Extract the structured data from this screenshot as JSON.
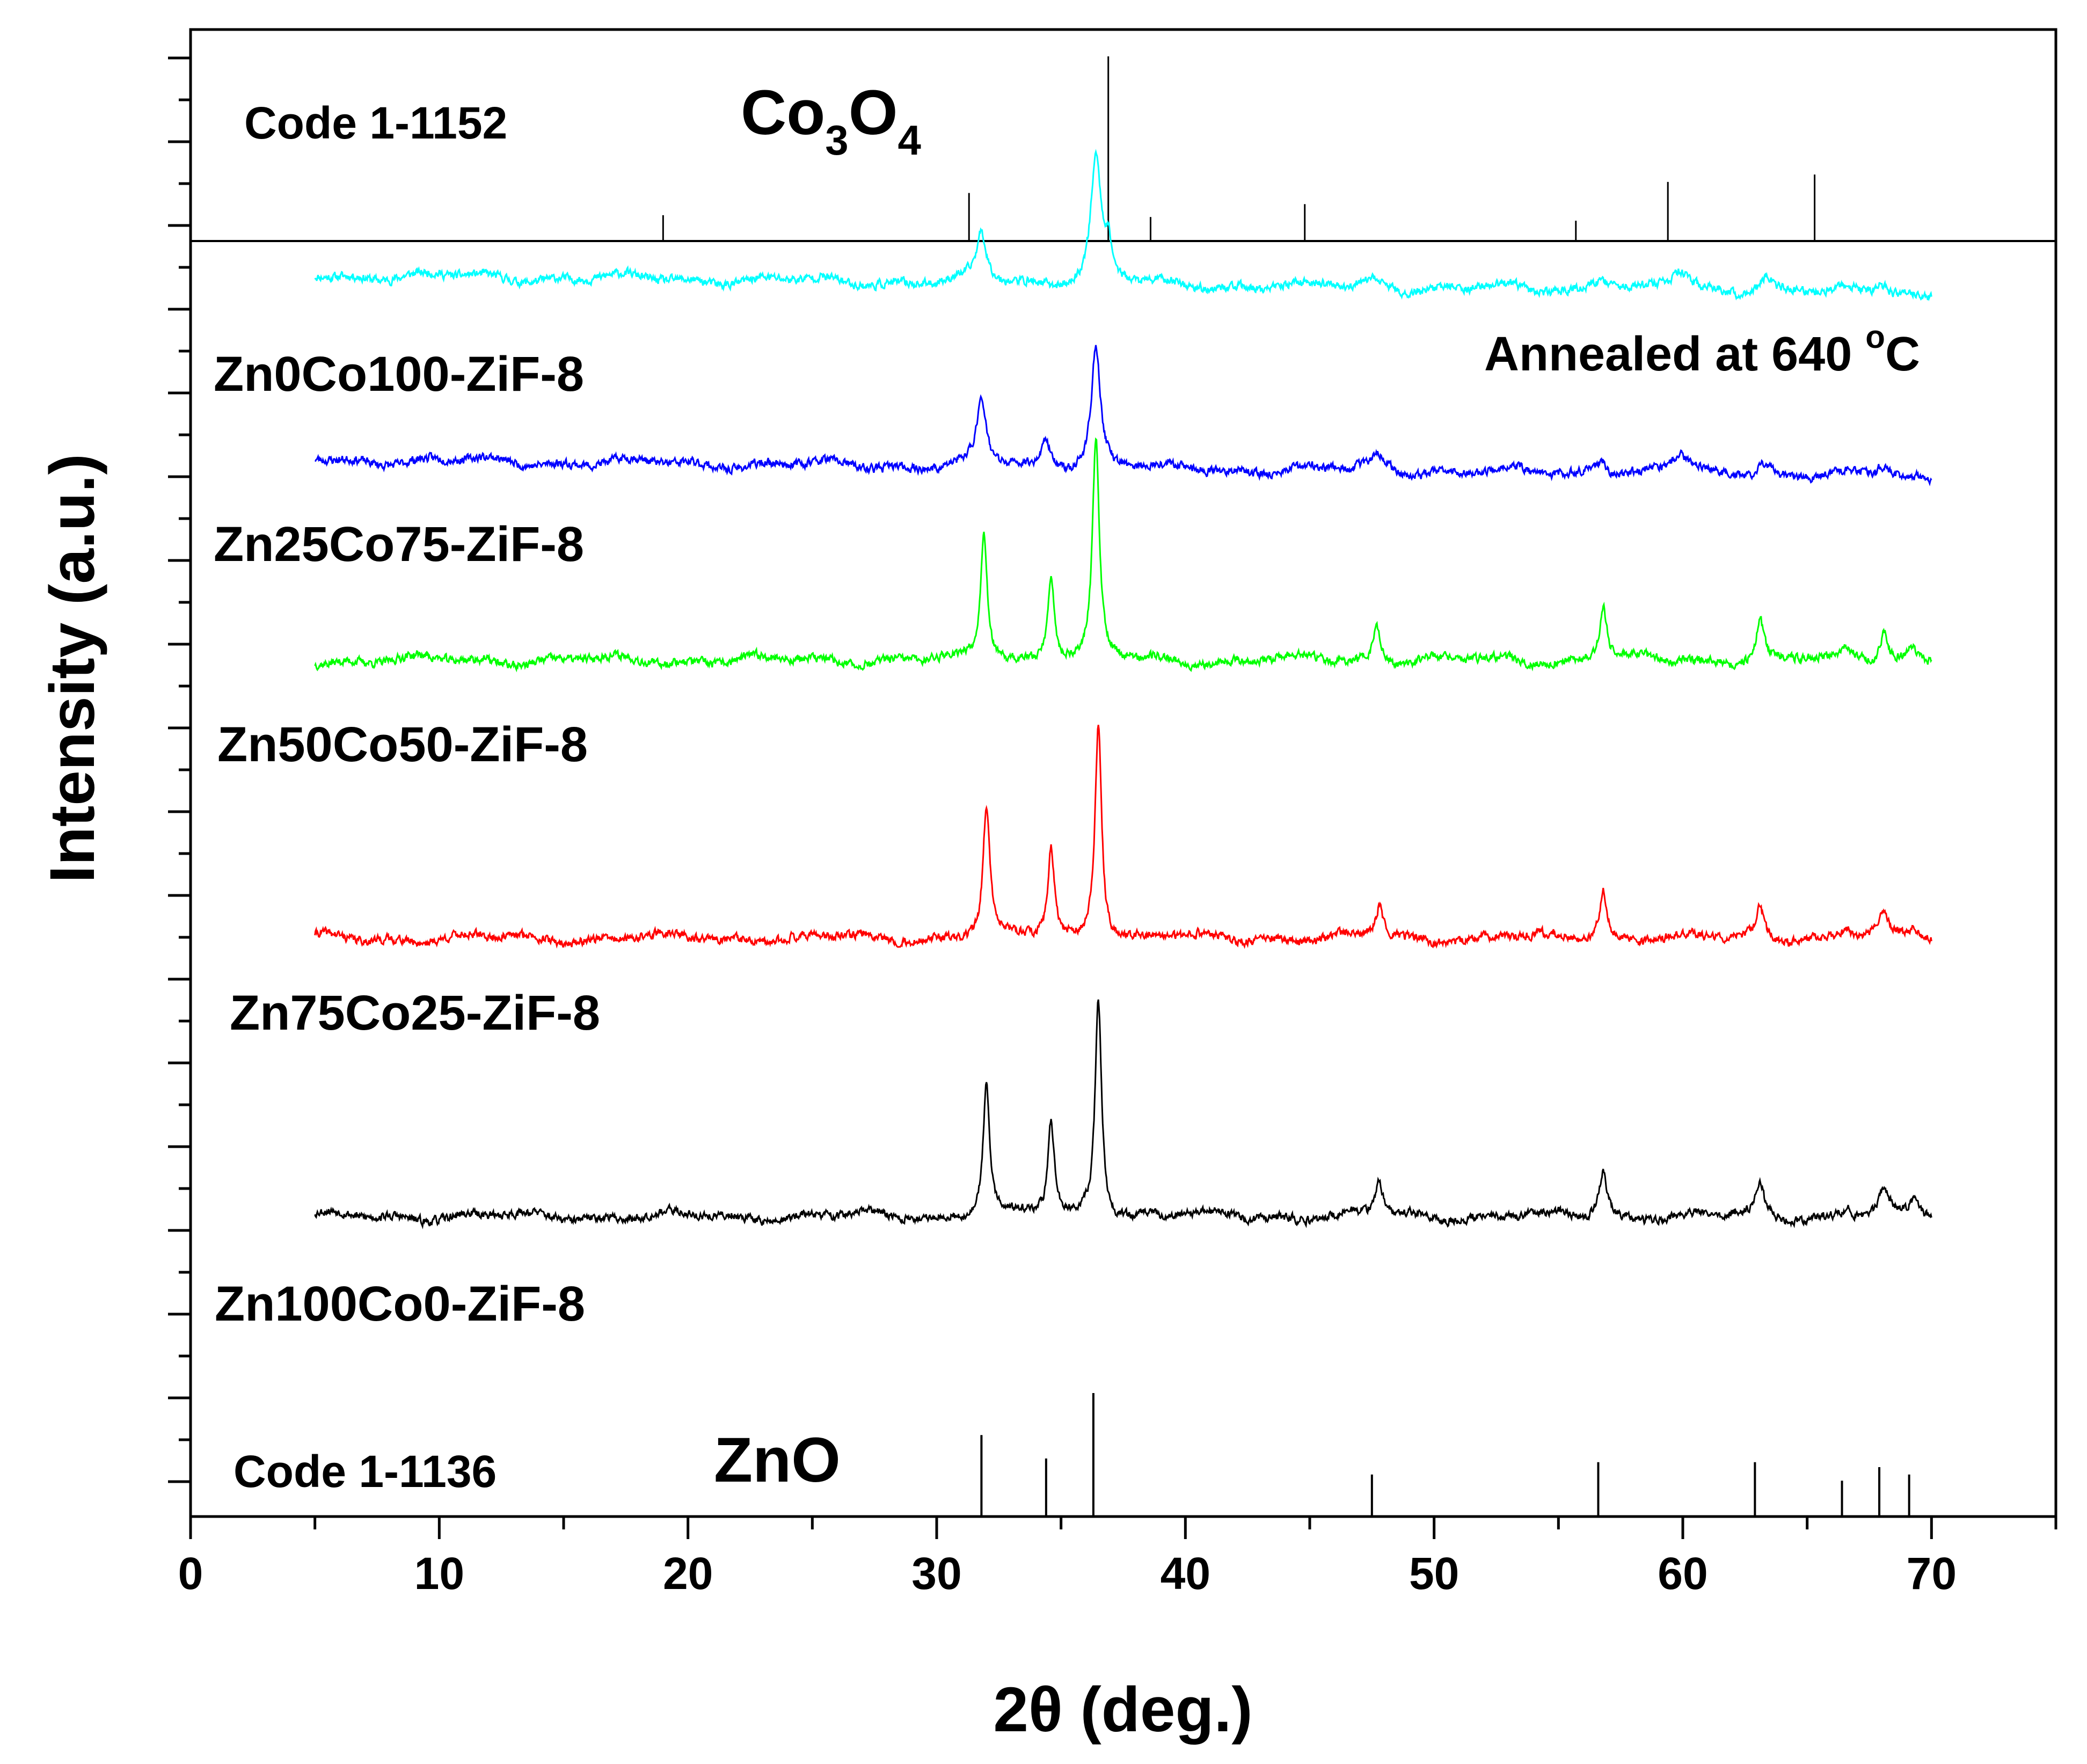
{
  "chart_data": {
    "type": "line",
    "title": "",
    "xlabel": "2θ (deg.)",
    "ylabel": "Intensity (a.u.)",
    "xlim": [
      0,
      75
    ],
    "x_ticks": [
      0,
      10,
      20,
      30,
      40,
      50,
      60,
      70
    ],
    "y_ticks_shown": false,
    "annotation": {
      "text": "Annealed at 640 ",
      "superscript": "o",
      "unit": "C"
    },
    "reference_top": {
      "code": "Code 1-1152",
      "phase_main": "Co",
      "phase_sub1": "3",
      "phase_mid": "O",
      "phase_sub2": "4",
      "peaks": [
        {
          "x": 19.0,
          "rel": 0.14
        },
        {
          "x": 31.3,
          "rel": 0.26
        },
        {
          "x": 36.9,
          "rel": 1.0
        },
        {
          "x": 38.6,
          "rel": 0.13
        },
        {
          "x": 44.8,
          "rel": 0.2
        },
        {
          "x": 55.7,
          "rel": 0.11
        },
        {
          "x": 59.4,
          "rel": 0.32
        },
        {
          "x": 65.3,
          "rel": 0.36
        }
      ]
    },
    "reference_bottom": {
      "code": "Code 1-1136",
      "phase": "ZnO",
      "peaks": [
        {
          "x": 31.8,
          "rel": 0.66
        },
        {
          "x": 34.4,
          "rel": 0.47
        },
        {
          "x": 36.3,
          "rel": 1.0
        },
        {
          "x": 47.5,
          "rel": 0.34
        },
        {
          "x": 56.6,
          "rel": 0.44
        },
        {
          "x": 62.9,
          "rel": 0.44
        },
        {
          "x": 66.4,
          "rel": 0.29
        },
        {
          "x": 67.9,
          "rel": 0.4
        },
        {
          "x": 69.1,
          "rel": 0.34
        }
      ]
    },
    "x_range": [
      5,
      70
    ],
    "series": [
      {
        "name": "Zn0Co100-ZiF-8",
        "color": "#00FFFF",
        "baseline": 0.835,
        "drop": 0.013,
        "noise_seed": 11,
        "peaks": [
          {
            "x": 31.8,
            "h": 0.032,
            "w": 0.25
          },
          {
            "x": 36.4,
            "h": 0.084,
            "w": 0.25
          },
          {
            "x": 36.9,
            "h": 0.022,
            "w": 0.18
          },
          {
            "x": 47.7,
            "h": 0.006,
            "w": 0.4
          },
          {
            "x": 56.8,
            "h": 0.009,
            "w": 0.5
          },
          {
            "x": 59.9,
            "h": 0.012,
            "w": 0.4
          },
          {
            "x": 63.3,
            "h": 0.011,
            "w": 0.4
          },
          {
            "x": 68.0,
            "h": 0.007,
            "w": 0.3
          }
        ]
      },
      {
        "name": "Zn25Co75-ZiF-8",
        "color": "#0000FF",
        "baseline": 0.711,
        "drop": 0.012,
        "noise_seed": 23,
        "peaks": [
          {
            "x": 31.8,
            "h": 0.045,
            "w": 0.22
          },
          {
            "x": 34.4,
            "h": 0.02,
            "w": 0.18
          },
          {
            "x": 36.4,
            "h": 0.082,
            "w": 0.22
          },
          {
            "x": 47.8,
            "h": 0.01,
            "w": 0.4
          },
          {
            "x": 56.7,
            "h": 0.011,
            "w": 0.35
          },
          {
            "x": 59.9,
            "h": 0.013,
            "w": 0.4
          },
          {
            "x": 63.2,
            "h": 0.01,
            "w": 0.35
          },
          {
            "x": 68.1,
            "h": 0.008,
            "w": 0.3
          }
        ]
      },
      {
        "name": "Zn50Co50-ZiF-8",
        "color": "#00FF00",
        "baseline": 0.576,
        "drop": 0.0,
        "noise_seed": 37,
        "peaks": [
          {
            "x": 31.9,
            "h": 0.087,
            "w": 0.16
          },
          {
            "x": 34.6,
            "h": 0.059,
            "w": 0.16
          },
          {
            "x": 36.4,
            "h": 0.147,
            "w": 0.16
          },
          {
            "x": 47.7,
            "h": 0.023,
            "w": 0.18
          },
          {
            "x": 56.8,
            "h": 0.037,
            "w": 0.18
          },
          {
            "x": 63.1,
            "h": 0.028,
            "w": 0.18
          },
          {
            "x": 66.6,
            "h": 0.007,
            "w": 0.22
          },
          {
            "x": 68.1,
            "h": 0.022,
            "w": 0.18
          },
          {
            "x": 69.2,
            "h": 0.01,
            "w": 0.22
          }
        ]
      },
      {
        "name": "Zn75Co25-ZiF-8",
        "color": "#FF0000",
        "baseline": 0.389,
        "drop": 0.0,
        "noise_seed": 41,
        "peaks": [
          {
            "x": 32.0,
            "h": 0.089,
            "w": 0.16
          },
          {
            "x": 34.6,
            "h": 0.061,
            "w": 0.16
          },
          {
            "x": 36.5,
            "h": 0.146,
            "w": 0.16
          },
          {
            "x": 47.8,
            "h": 0.022,
            "w": 0.18
          },
          {
            "x": 56.8,
            "h": 0.033,
            "w": 0.18
          },
          {
            "x": 63.1,
            "h": 0.022,
            "w": 0.18
          },
          {
            "x": 66.6,
            "h": 0.006,
            "w": 0.22
          },
          {
            "x": 68.1,
            "h": 0.016,
            "w": 0.18
          },
          {
            "x": 69.3,
            "h": 0.008,
            "w": 0.22
          }
        ]
      },
      {
        "name": "Zn100Co0-ZiF-8",
        "color": "#000000",
        "baseline": 0.202,
        "drop": 0.0,
        "noise_seed": 53,
        "peaks": [
          {
            "x": 32.0,
            "h": 0.089,
            "w": 0.16
          },
          {
            "x": 34.6,
            "h": 0.061,
            "w": 0.16
          },
          {
            "x": 36.5,
            "h": 0.146,
            "w": 0.16
          },
          {
            "x": 47.8,
            "h": 0.022,
            "w": 0.18
          },
          {
            "x": 56.8,
            "h": 0.033,
            "w": 0.18
          },
          {
            "x": 63.1,
            "h": 0.023,
            "w": 0.18
          },
          {
            "x": 66.6,
            "h": 0.006,
            "w": 0.22
          },
          {
            "x": 68.1,
            "h": 0.017,
            "w": 0.18
          },
          {
            "x": 69.3,
            "h": 0.01,
            "w": 0.22
          }
        ]
      }
    ]
  }
}
